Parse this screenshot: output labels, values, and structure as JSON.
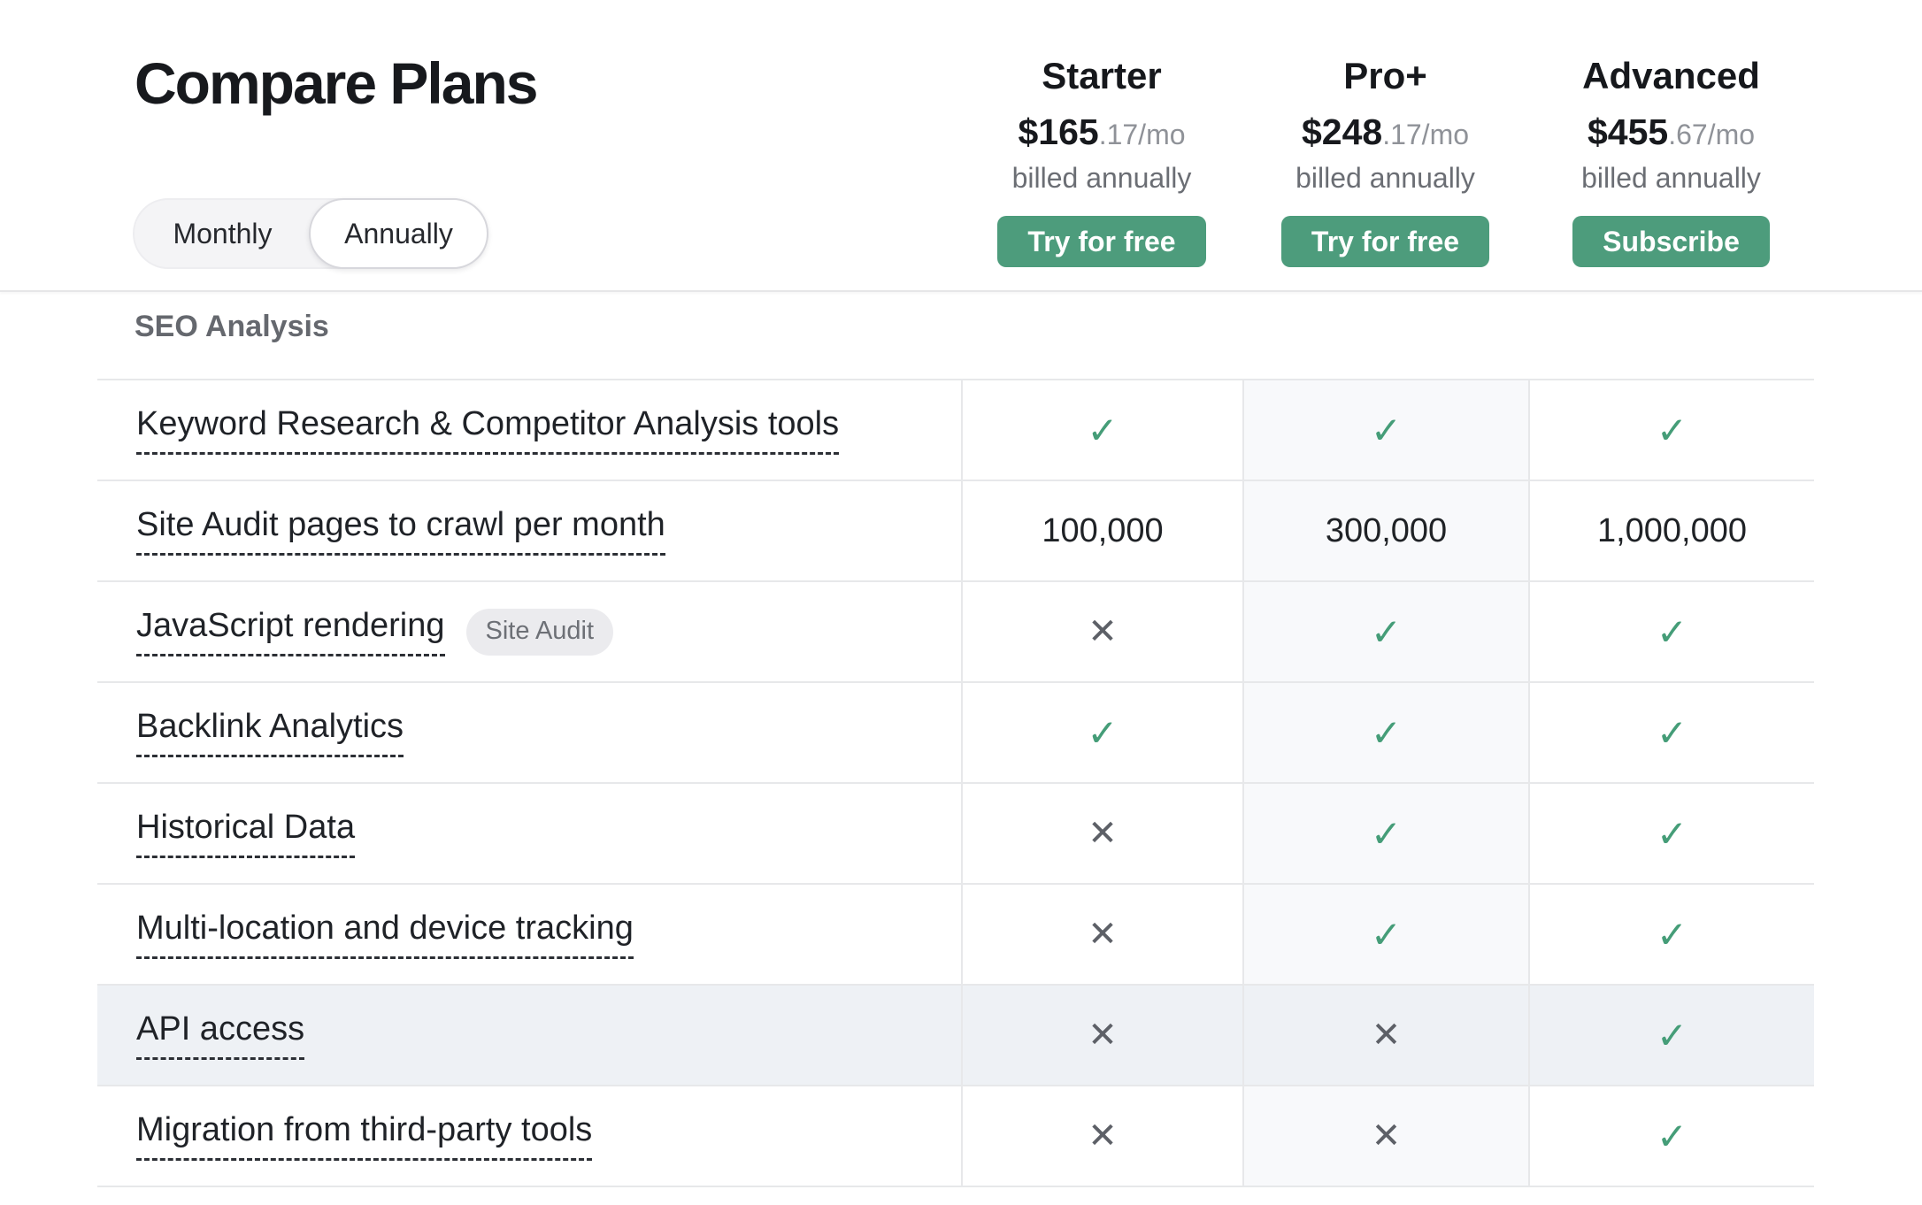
{
  "page": {
    "title": "Compare Plans"
  },
  "billing_toggle": {
    "options": [
      {
        "label": "Monthly",
        "selected": "false"
      },
      {
        "label": "Annually",
        "selected": "true"
      }
    ]
  },
  "plans": [
    {
      "name": "Starter",
      "price_main": "$165",
      "price_frac": ".17/mo",
      "billing_note": "billed annually",
      "cta": "Try for free"
    },
    {
      "name": "Pro+",
      "price_main": "$248",
      "price_frac": ".17/mo",
      "billing_note": "billed annually",
      "cta": "Try for free"
    },
    {
      "name": "Advanced",
      "price_main": "$455",
      "price_frac": ".67/mo",
      "billing_note": "billed annually",
      "cta": "Subscribe"
    }
  ],
  "section": {
    "title": "SEO Analysis"
  },
  "table": {
    "rows": [
      {
        "label": "Keyword Research & Competitor Analysis tools",
        "badge": "",
        "highlighted": "false",
        "cells": [
          {
            "glyph": "✓",
            "state": "check",
            "icon_name": "check-icon"
          },
          {
            "glyph": "✓",
            "state": "check",
            "icon_name": "check-icon"
          },
          {
            "glyph": "✓",
            "state": "check",
            "icon_name": "check-icon"
          }
        ]
      },
      {
        "label": "Site Audit pages to crawl per month",
        "badge": "",
        "highlighted": "false",
        "cells": [
          {
            "glyph": "100,000",
            "state": "text",
            "icon_name": "value-text"
          },
          {
            "glyph": "300,000",
            "state": "text",
            "icon_name": "value-text"
          },
          {
            "glyph": "1,000,000",
            "state": "text",
            "icon_name": "value-text"
          }
        ]
      },
      {
        "label": "JavaScript rendering",
        "badge": "Site Audit",
        "highlighted": "false",
        "cells": [
          {
            "glyph": "✕",
            "state": "cross",
            "icon_name": "cross-icon"
          },
          {
            "glyph": "✓",
            "state": "check",
            "icon_name": "check-icon"
          },
          {
            "glyph": "✓",
            "state": "check",
            "icon_name": "check-icon"
          }
        ]
      },
      {
        "label": "Backlink Analytics",
        "badge": "",
        "highlighted": "false",
        "cells": [
          {
            "glyph": "✓",
            "state": "check",
            "icon_name": "check-icon"
          },
          {
            "glyph": "✓",
            "state": "check",
            "icon_name": "check-icon"
          },
          {
            "glyph": "✓",
            "state": "check",
            "icon_name": "check-icon"
          }
        ]
      },
      {
        "label": "Historical Data",
        "badge": "",
        "highlighted": "false",
        "cells": [
          {
            "glyph": "✕",
            "state": "cross",
            "icon_name": "cross-icon"
          },
          {
            "glyph": "✓",
            "state": "check",
            "icon_name": "check-icon"
          },
          {
            "glyph": "✓",
            "state": "check",
            "icon_name": "check-icon"
          }
        ]
      },
      {
        "label": "Multi-location and device tracking",
        "badge": "",
        "highlighted": "false",
        "cells": [
          {
            "glyph": "✕",
            "state": "cross",
            "icon_name": "cross-icon"
          },
          {
            "glyph": "✓",
            "state": "check",
            "icon_name": "check-icon"
          },
          {
            "glyph": "✓",
            "state": "check",
            "icon_name": "check-icon"
          }
        ]
      },
      {
        "label": "API access",
        "badge": "",
        "highlighted": "true",
        "cells": [
          {
            "glyph": "✕",
            "state": "cross",
            "icon_name": "cross-icon"
          },
          {
            "glyph": "✕",
            "state": "cross",
            "icon_name": "cross-icon"
          },
          {
            "glyph": "✓",
            "state": "check",
            "icon_name": "check-icon"
          }
        ]
      },
      {
        "label": "Migration from third-party tools",
        "badge": "",
        "highlighted": "false",
        "cells": [
          {
            "glyph": "✕",
            "state": "cross",
            "icon_name": "cross-icon"
          },
          {
            "glyph": "✕",
            "state": "cross",
            "icon_name": "cross-icon"
          },
          {
            "glyph": "✓",
            "state": "check",
            "icon_name": "check-icon"
          }
        ]
      }
    ]
  },
  "colors": {
    "accent_green": "#4d9c7c",
    "check_green": "#459d78",
    "cross_grey": "#5d6067",
    "row_border": "#e7e8ea",
    "column_tint": "#f8f9fb",
    "row_highlight": "#eef1f5"
  }
}
